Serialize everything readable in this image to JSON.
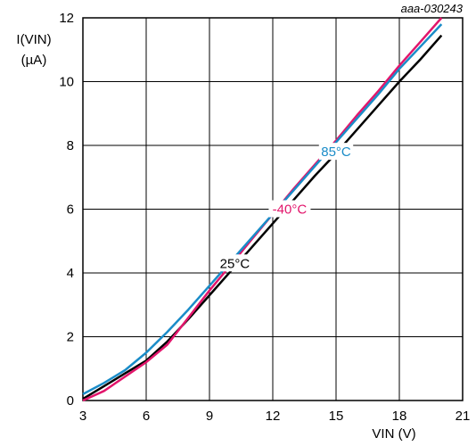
{
  "chart_data": {
    "type": "line",
    "doc_id": "aaa-030243",
    "ylabel_line1": "I(VIN)",
    "ylabel_line2": "(µA)",
    "xlabel": "VIN (V)",
    "xlim": [
      3,
      21
    ],
    "ylim": [
      0,
      12
    ],
    "xticks": [
      3,
      6,
      9,
      12,
      15,
      18,
      21
    ],
    "yticks": [
      0,
      2,
      4,
      6,
      8,
      10,
      12
    ],
    "grid": true,
    "series": [
      {
        "name": "25°C",
        "color": "#000000",
        "x": [
          3,
          4,
          5,
          6,
          7,
          8,
          9,
          10,
          11,
          12,
          13,
          14,
          15,
          16,
          17,
          18,
          19,
          20
        ],
        "y": [
          0.05,
          0.45,
          0.85,
          1.25,
          1.85,
          2.55,
          3.3,
          4.05,
          4.8,
          5.55,
          6.3,
          7.05,
          7.75,
          8.5,
          9.25,
          10.0,
          10.7,
          11.45
        ]
      },
      {
        "name": "-40°C",
        "color": "#e2156b",
        "x": [
          3,
          4,
          5,
          6,
          7,
          8,
          9,
          10,
          11,
          12,
          13,
          14,
          15,
          16,
          17,
          18,
          19,
          20
        ],
        "y": [
          0.0,
          0.3,
          0.75,
          1.2,
          1.75,
          2.6,
          3.45,
          4.25,
          5.05,
          5.85,
          6.65,
          7.4,
          8.15,
          8.95,
          9.7,
          10.5,
          11.25,
          12.0
        ]
      },
      {
        "name": "85°C",
        "color": "#1a8cc8",
        "x": [
          3,
          4,
          5,
          6,
          7,
          8,
          9,
          10,
          11,
          12,
          13,
          14,
          15,
          16,
          17,
          18,
          19,
          20
        ],
        "y": [
          0.2,
          0.55,
          0.95,
          1.5,
          2.15,
          2.85,
          3.6,
          4.35,
          5.1,
          5.85,
          6.6,
          7.35,
          8.1,
          8.85,
          9.6,
          10.4,
          11.1,
          11.8
        ]
      }
    ],
    "annotations": [
      {
        "text": "85°C",
        "series": 2,
        "x": 15.0,
        "y": 7.8
      },
      {
        "text": "-40°C",
        "series": 1,
        "x": 12.8,
        "y": 6.0
      },
      {
        "text": "25°C",
        "series": 0,
        "x": 10.2,
        "y": 4.3
      }
    ]
  }
}
